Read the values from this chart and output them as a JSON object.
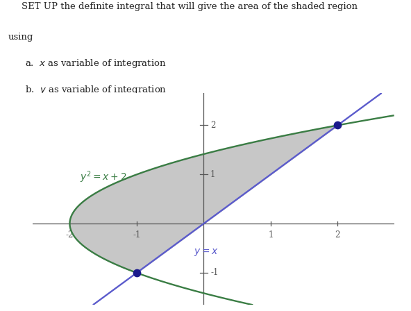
{
  "title_line1": "SET UP the definite integral that will give the area of the shaded region",
  "title_line2": "using",
  "parabola_label": "$y^2 = x + 2$",
  "line_label": "$y = x$",
  "parabola_color": "#3a7d44",
  "line_color": "#5b5bcc",
  "shade_color": "#aaaaaa",
  "shade_alpha": 0.65,
  "dot_color": "#1a1a8c",
  "dot_size": 55,
  "intersection1": [
    -1,
    -1
  ],
  "intersection2": [
    2,
    2
  ],
  "xlim": [
    -2.55,
    2.85
  ],
  "ylim": [
    -1.65,
    2.65
  ],
  "xticks": [
    -2,
    -1,
    1,
    2
  ],
  "yticks": [
    -1,
    1,
    2
  ],
  "axis_color": "#555555",
  "background_color": "#ffffff",
  "fig_width": 5.92,
  "fig_height": 4.48,
  "dpi": 100,
  "text_color": "#222222"
}
